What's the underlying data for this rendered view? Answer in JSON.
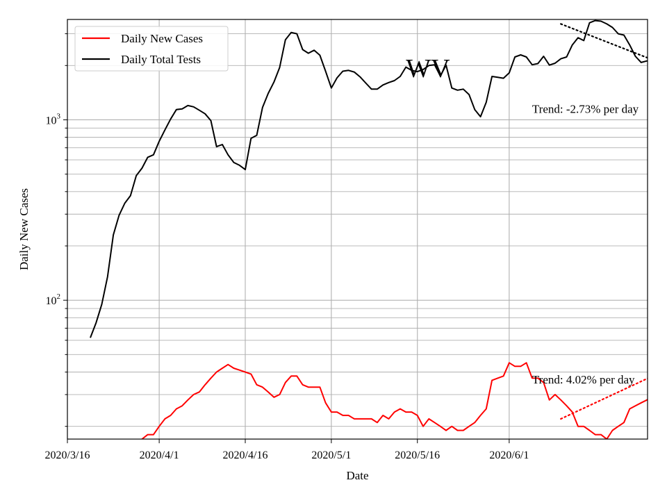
{
  "chart_data": {
    "type": "line",
    "xlabel": "Date",
    "ylabel": "Daily New Cases",
    "yscale": "log",
    "grid": true,
    "legend_position": "top-left",
    "xlim": [
      "2020-03-16",
      "2020-06-16"
    ],
    "ylim": [
      17,
      3600
    ],
    "x_ticks": [
      {
        "date": "2020-03-16",
        "label": "2020/3/16"
      },
      {
        "date": "2020-04-01",
        "label": "2020/4/1"
      },
      {
        "date": "2020-04-16",
        "label": "2020/4/16"
      },
      {
        "date": "2020-05-01",
        "label": "2020/5/1"
      },
      {
        "date": "2020-05-16",
        "label": "2020/5/16"
      },
      {
        "date": "2020-06-01",
        "label": "2020/6/1"
      }
    ],
    "y_major_ticks": [
      {
        "value": 100,
        "base": "10",
        "exp": "2"
      },
      {
        "value": 1000,
        "base": "10",
        "exp": "3"
      }
    ],
    "annotations": [
      {
        "text": "Trend: -2.73% per day",
        "date": "2020-06-05",
        "value": 1150
      },
      {
        "text": "Trend: 4.02% per day",
        "date": "2020-06-05",
        "value": 36.5
      },
      {
        "text": "WV",
        "date": "2020-05-14",
        "value": 1950
      }
    ],
    "series": [
      {
        "name": "Daily New Cases",
        "color": "#ff0000",
        "start_date": "2020-03-26",
        "values": [
          14,
          15,
          16,
          17,
          18,
          18,
          20,
          22,
          23,
          25,
          26,
          28,
          30,
          31,
          34,
          37,
          40,
          42,
          44,
          42,
          41,
          40,
          39,
          34,
          33,
          31,
          29,
          30,
          35,
          38,
          38,
          34,
          33,
          33,
          33,
          27,
          24,
          24,
          23,
          23,
          22,
          22,
          22,
          22,
          21,
          23,
          22,
          24,
          25,
          24,
          24,
          23,
          20,
          22,
          21,
          20,
          19,
          20,
          19,
          19,
          20,
          21,
          23,
          25,
          36,
          37,
          38,
          45,
          43,
          43,
          45,
          37,
          37,
          35,
          28,
          30,
          28,
          26,
          24,
          20,
          20,
          19,
          18,
          18,
          17,
          19,
          20,
          21,
          25,
          26,
          27,
          28,
          30,
          31,
          32,
          33,
          34,
          34,
          35,
          36,
          34,
          32
        ]
      },
      {
        "name": "Daily Total Tests",
        "color": "#000000",
        "start_date": "2020-03-20",
        "values": [
          62,
          75,
          95,
          135,
          230,
          295,
          345,
          380,
          490,
          540,
          620,
          640,
          760,
          880,
          1010,
          1140,
          1150,
          1200,
          1180,
          1130,
          1080,
          990,
          710,
          730,
          640,
          580,
          560,
          530,
          790,
          820,
          1170,
          1400,
          1620,
          1950,
          2780,
          3050,
          3000,
          2450,
          2340,
          2430,
          2280,
          1860,
          1500,
          1710,
          1860,
          1880,
          1840,
          1730,
          1600,
          1480,
          1480,
          1560,
          1610,
          1650,
          1740,
          1960,
          1880,
          1850,
          1900,
          2000,
          2020,
          1750,
          2010,
          1500,
          1460,
          1480,
          1380,
          1140,
          1040,
          1250,
          1740,
          1720,
          1700,
          1820,
          2230,
          2290,
          2230,
          2020,
          2050,
          2250,
          2010,
          2060,
          2180,
          2230,
          2600,
          2850,
          2750,
          3450,
          3550,
          3520,
          3400,
          3250,
          3000,
          2950,
          2600,
          2250,
          2080,
          2120,
          2090,
          2050
        ]
      }
    ],
    "trend_lines": [
      {
        "series": "Daily Total Tests",
        "color": "#000000",
        "from": {
          "date": "2020-06-10",
          "value": 3400
        },
        "to": {
          "date": "2020-06-26",
          "value": 2150
        }
      },
      {
        "series": "Daily New Cases",
        "color": "#ff0000",
        "from": {
          "date": "2020-06-10",
          "value": 22
        },
        "to": {
          "date": "2020-06-26",
          "value": 38
        }
      }
    ]
  }
}
